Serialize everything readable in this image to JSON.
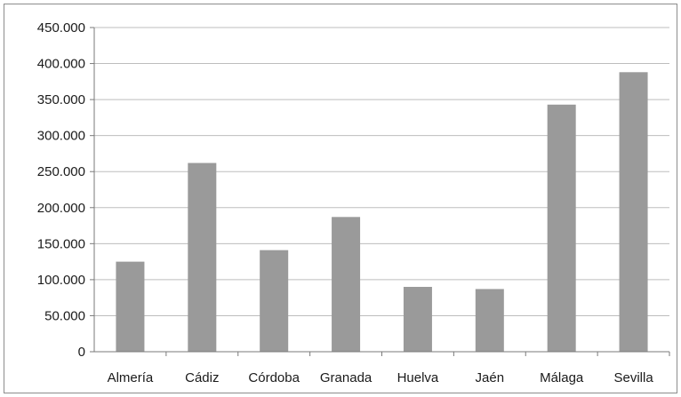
{
  "chart_data": {
    "type": "bar",
    "categories": [
      "Almería",
      "Cádiz",
      "Córdoba",
      "Granada",
      "Huelva",
      "Jaén",
      "Málaga",
      "Sevilla"
    ],
    "values": [
      125000,
      262000,
      141000,
      187000,
      90000,
      87000,
      343000,
      388000
    ],
    "y_tick_labels": [
      "0",
      "50.000",
      "100.000",
      "150.000",
      "200.000",
      "250.000",
      "300.000",
      "350.000",
      "400.000",
      "450.000"
    ],
    "y_tick_values": [
      0,
      50000,
      100000,
      150000,
      200000,
      250000,
      300000,
      350000,
      400000,
      450000
    ],
    "ylim": [
      0,
      450000
    ],
    "title": "",
    "xlabel": "",
    "ylabel": "",
    "grid": true,
    "legend": "none",
    "bar_color": "#9a9a9a",
    "grid_color": "#bdbdbd"
  }
}
